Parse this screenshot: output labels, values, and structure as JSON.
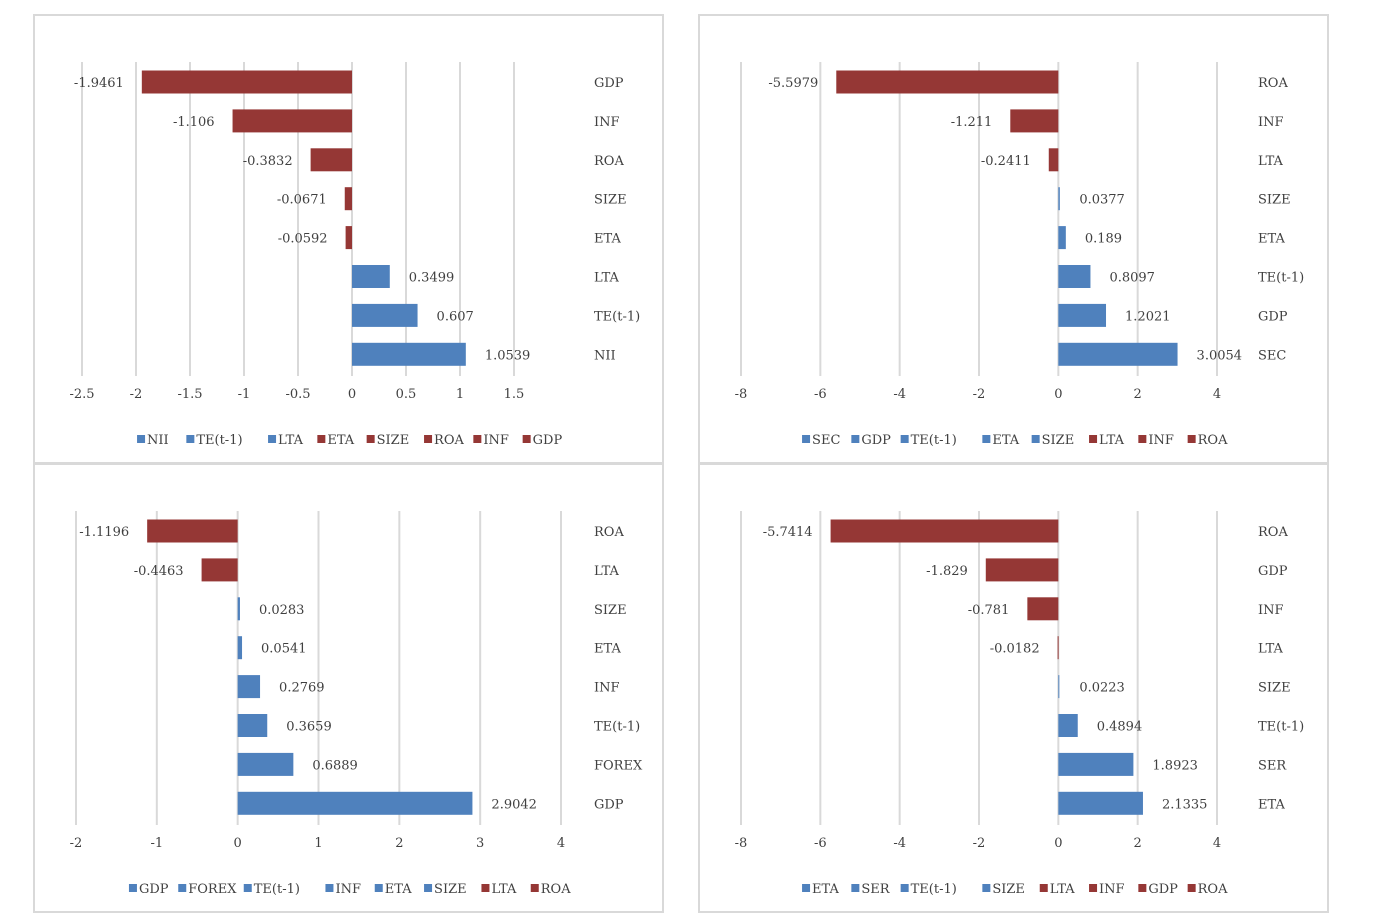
{
  "colors": {
    "positive": "#4f81bd",
    "negative": "#953735",
    "grid": "#d9d9d9",
    "text": "#404040"
  },
  "chart_data": [
    {
      "type": "bar",
      "orientation": "horizontal",
      "xlim": [
        -2.5,
        1.5
      ],
      "xticks": [
        "-2.5",
        "-2",
        "-1.5",
        "-1",
        "-0.5",
        "0",
        "0.5",
        "1",
        "1.5"
      ],
      "grid": "vertical",
      "legend_position": "bottom",
      "bars": [
        {
          "category": "GDP",
          "value": -1.9461,
          "label": "-1.9461"
        },
        {
          "category": "INF",
          "value": -1.106,
          "label": "-1.106"
        },
        {
          "category": "ROA",
          "value": -0.3832,
          "label": "-0.3832"
        },
        {
          "category": "SIZE",
          "value": -0.0671,
          "label": "-0.0671"
        },
        {
          "category": "ETA",
          "value": -0.0592,
          "label": "-0.0592"
        },
        {
          "category": "LTA",
          "value": 0.3499,
          "label": "0.3499"
        },
        {
          "category": "TE(t-1)",
          "value": 0.607,
          "label": "0.607"
        },
        {
          "category": "NII",
          "value": 1.0539,
          "label": "1.0539"
        }
      ],
      "legend": [
        "NII",
        "TE(t-1)",
        "LTA",
        "ETA",
        "SIZE",
        "ROA",
        "INF",
        "GDP"
      ]
    },
    {
      "type": "bar",
      "orientation": "horizontal",
      "xlim": [
        -8,
        4
      ],
      "xticks": [
        "-8",
        "-6",
        "-4",
        "-2",
        "0",
        "2",
        "4"
      ],
      "grid": "vertical",
      "legend_position": "bottom",
      "bars": [
        {
          "category": "ROA",
          "value": -5.5979,
          "label": "-5.5979"
        },
        {
          "category": "INF",
          "value": -1.211,
          "label": "-1.211"
        },
        {
          "category": "LTA",
          "value": -0.2411,
          "label": "-0.2411"
        },
        {
          "category": "SIZE",
          "value": 0.0377,
          "label": "0.0377"
        },
        {
          "category": "ETA",
          "value": 0.189,
          "label": "0.189"
        },
        {
          "category": "TE(t-1)",
          "value": 0.8097,
          "label": "0.8097"
        },
        {
          "category": "GDP",
          "value": 1.2021,
          "label": "1.2021"
        },
        {
          "category": "SEC",
          "value": 3.0054,
          "label": "3.0054"
        }
      ],
      "legend": [
        "SEC",
        "GDP",
        "TE(t-1)",
        "ETA",
        "SIZE",
        "LTA",
        "INF",
        "ROA"
      ]
    },
    {
      "type": "bar",
      "orientation": "horizontal",
      "xlim": [
        -2,
        4
      ],
      "xticks": [
        "-2",
        "-1",
        "0",
        "1",
        "2",
        "3",
        "4"
      ],
      "grid": "vertical",
      "legend_position": "bottom",
      "bars": [
        {
          "category": "ROA",
          "value": -1.1196,
          "label": "-1.1196"
        },
        {
          "category": "LTA",
          "value": -0.4463,
          "label": "-0.4463"
        },
        {
          "category": "SIZE",
          "value": 0.0283,
          "label": "0.0283"
        },
        {
          "category": "ETA",
          "value": 0.0541,
          "label": "0.0541"
        },
        {
          "category": "INF",
          "value": 0.2769,
          "label": "0.2769"
        },
        {
          "category": "TE(t-1)",
          "value": 0.3659,
          "label": "0.3659"
        },
        {
          "category": "FOREX",
          "value": 0.6889,
          "label": "0.6889"
        },
        {
          "category": "GDP",
          "value": 2.9042,
          "label": "2.9042"
        }
      ],
      "legend": [
        "GDP",
        "FOREX",
        "TE(t-1)",
        "INF",
        "ETA",
        "SIZE",
        "LTA",
        "ROA"
      ]
    },
    {
      "type": "bar",
      "orientation": "horizontal",
      "xlim": [
        -8,
        4
      ],
      "xticks": [
        "-8",
        "-6",
        "-4",
        "-2",
        "0",
        "2",
        "4"
      ],
      "grid": "vertical",
      "legend_position": "bottom",
      "bars": [
        {
          "category": "ROA",
          "value": -5.7414,
          "label": "-5.7414"
        },
        {
          "category": "GDP",
          "value": -1.829,
          "label": "-1.829"
        },
        {
          "category": "INF",
          "value": -0.781,
          "label": "-0.781"
        },
        {
          "category": "LTA",
          "value": -0.0182,
          "label": "-0.0182"
        },
        {
          "category": "SIZE",
          "value": 0.0223,
          "label": "0.0223"
        },
        {
          "category": "TE(t-1)",
          "value": 0.4894,
          "label": "0.4894"
        },
        {
          "category": "SER",
          "value": 1.8923,
          "label": "1.8923"
        },
        {
          "category": "ETA",
          "value": 2.1335,
          "label": "2.1335"
        }
      ],
      "legend": [
        "ETA",
        "SER",
        "TE(t-1)",
        "SIZE",
        "LTA",
        "INF",
        "GDP",
        "ROA"
      ]
    }
  ]
}
